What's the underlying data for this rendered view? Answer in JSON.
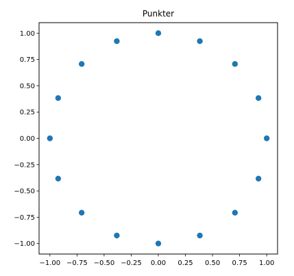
{
  "chart_data": {
    "type": "scatter",
    "title": "Punkter",
    "xlabel": "",
    "ylabel": "",
    "xlim": [
      -1.1,
      1.1
    ],
    "ylim": [
      -1.1,
      1.1
    ],
    "grid": false,
    "marker_color": "#1f77b4",
    "x_ticks": [
      -1.0,
      -0.75,
      -0.5,
      -0.25,
      0.0,
      0.25,
      0.5,
      0.75,
      1.0
    ],
    "x_tick_labels": [
      "−1.00",
      "−0.75",
      "−0.50",
      "−0.25",
      "0.00",
      "0.25",
      "0.50",
      "0.75",
      "1.00"
    ],
    "y_ticks": [
      1.0,
      0.75,
      0.5,
      0.25,
      0.0,
      -0.25,
      -0.5,
      -0.75,
      -1.0
    ],
    "y_tick_labels": [
      "1.00",
      "0.75",
      "0.50",
      "0.25",
      "0.00",
      "−0.25",
      "−0.50",
      "−0.75",
      "−1.00"
    ],
    "points": [
      {
        "x": 1.0,
        "y": 0.0
      },
      {
        "x": 0.924,
        "y": 0.383
      },
      {
        "x": 0.707,
        "y": 0.707
      },
      {
        "x": 0.383,
        "y": 0.924
      },
      {
        "x": 0.0,
        "y": 1.0
      },
      {
        "x": -0.383,
        "y": 0.924
      },
      {
        "x": -0.707,
        "y": 0.707
      },
      {
        "x": -0.924,
        "y": 0.383
      },
      {
        "x": -1.0,
        "y": 0.0
      },
      {
        "x": -0.924,
        "y": -0.383
      },
      {
        "x": -0.707,
        "y": -0.707
      },
      {
        "x": -0.383,
        "y": -0.924
      },
      {
        "x": 0.0,
        "y": -1.0
      },
      {
        "x": 0.383,
        "y": -0.924
      },
      {
        "x": 0.707,
        "y": -0.707
      },
      {
        "x": 0.924,
        "y": -0.383
      }
    ]
  }
}
